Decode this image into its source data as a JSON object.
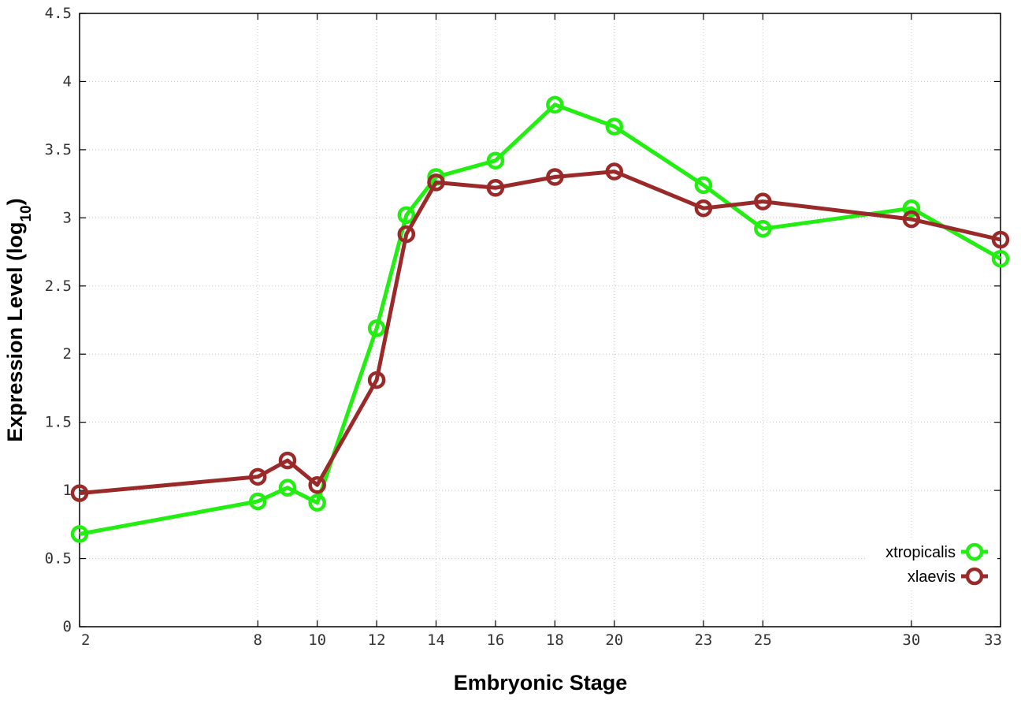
{
  "chart_data": {
    "type": "line",
    "xlabel": "Embryonic Stage",
    "ylabel_main": "Expression Level (log",
    "ylabel_sub": "10",
    "ylabel_close": ")",
    "x": [
      2,
      8,
      9,
      10,
      12,
      13,
      14,
      16,
      18,
      20,
      23,
      25,
      30,
      33
    ],
    "x_ticks": [
      2,
      8,
      10,
      12,
      14,
      16,
      18,
      20,
      23,
      25,
      30,
      33
    ],
    "x_tick_labels": [
      "2",
      "8",
      "10",
      "12",
      "14",
      "16",
      "18",
      "20",
      "23",
      "25",
      "30",
      "33"
    ],
    "xlim": [
      2,
      33
    ],
    "ylim": [
      0,
      4.5
    ],
    "y_ticks": [
      0,
      0.5,
      1,
      1.5,
      2,
      2.5,
      3,
      3.5,
      4,
      4.5
    ],
    "y_tick_labels": [
      "0",
      "0.5",
      "1",
      "1.5",
      "2",
      "2.5",
      "3",
      "3.5",
      "4",
      "4.5"
    ],
    "grid": true,
    "legend_position": "bottom-right",
    "series": [
      {
        "name": "xtropicalis",
        "color": "#22ee11",
        "marker": "open-circle",
        "values": [
          0.68,
          0.92,
          1.02,
          0.91,
          2.19,
          3.02,
          3.3,
          3.42,
          3.83,
          3.67,
          3.24,
          2.92,
          3.07,
          2.7
        ]
      },
      {
        "name": "xlaevis",
        "color": "#9a2a2a",
        "marker": "open-circle",
        "values": [
          0.98,
          1.1,
          1.22,
          1.04,
          1.81,
          2.88,
          3.26,
          3.22,
          3.3,
          3.34,
          3.07,
          3.12,
          2.99,
          2.84
        ]
      }
    ]
  }
}
